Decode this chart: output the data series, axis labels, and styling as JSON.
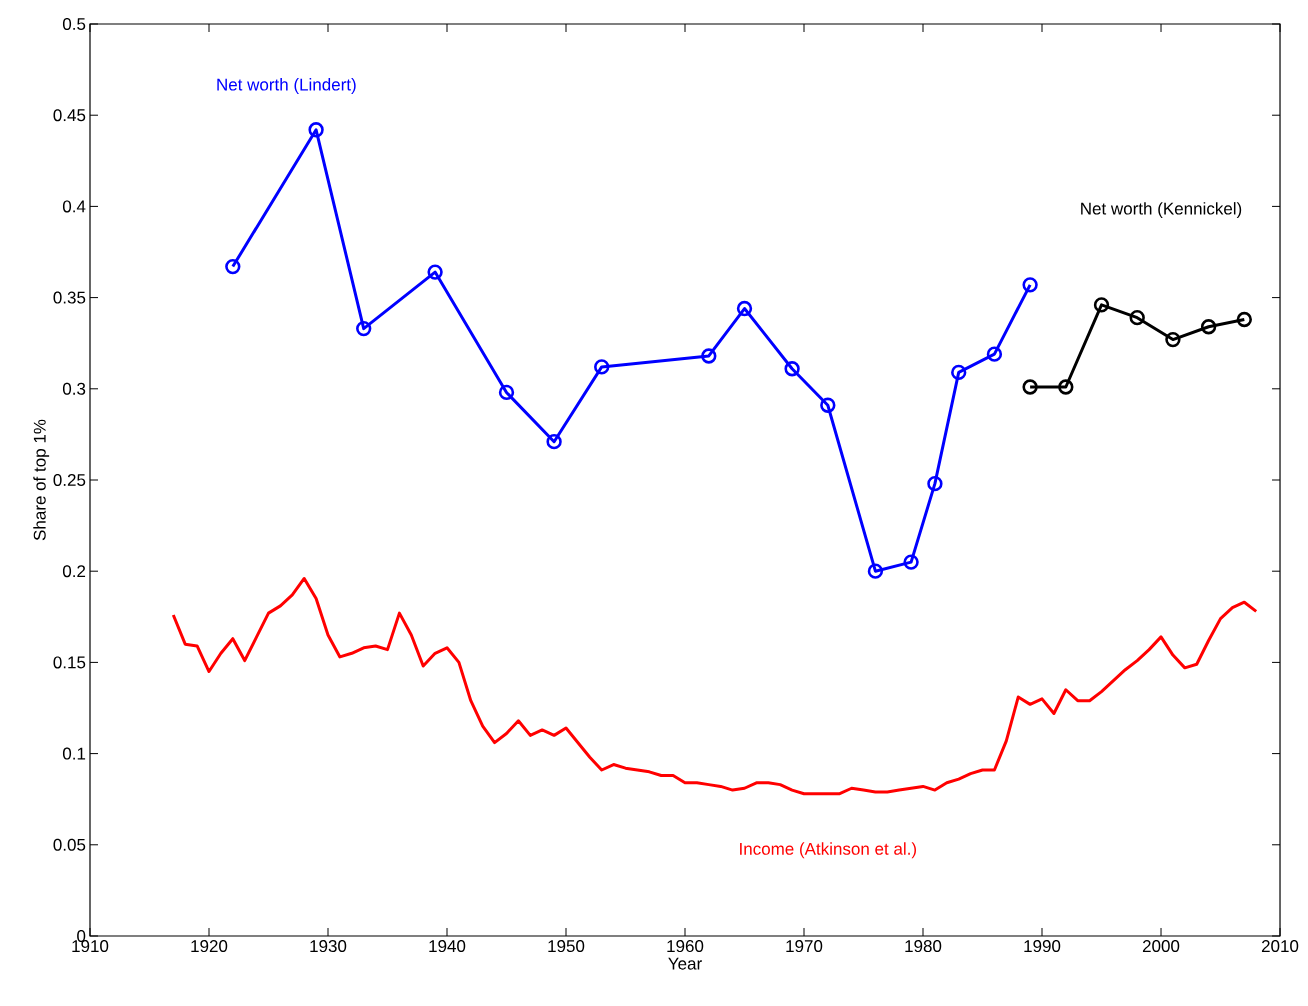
{
  "chart_data": {
    "type": "line",
    "xlabel": "Year",
    "ylabel": "Share of top 1%",
    "xlim": [
      1910,
      2010
    ],
    "xticks": [
      1910,
      1920,
      1930,
      1940,
      1950,
      1960,
      1970,
      1980,
      1990,
      2000,
      2010
    ],
    "ylim": [
      0,
      0.5
    ],
    "yticks": [
      0,
      0.05,
      0.1,
      0.15,
      0.2,
      0.25,
      0.3,
      0.35,
      0.4,
      0.45,
      0.5
    ],
    "grid": false,
    "line_style": "solid",
    "series": [
      {
        "name": "Net worth (Lindert)",
        "color": "#0000ff",
        "marker": "circle",
        "x": [
          1922,
          1929,
          1933,
          1939,
          1945,
          1949,
          1953,
          1962,
          1965,
          1969,
          1972,
          1976,
          1979,
          1981,
          1983,
          1986,
          1989
        ],
        "values": [
          0.367,
          0.442,
          0.333,
          0.364,
          0.298,
          0.271,
          0.312,
          0.318,
          0.344,
          0.311,
          0.291,
          0.2,
          0.205,
          0.248,
          0.309,
          0.319,
          0.357
        ]
      },
      {
        "name": "Net worth (Kennickel)",
        "color": "#000000",
        "marker": "circle",
        "x": [
          1989,
          1992,
          1995,
          1998,
          2001,
          2004,
          2007
        ],
        "values": [
          0.301,
          0.301,
          0.346,
          0.339,
          0.327,
          0.334,
          0.338
        ]
      },
      {
        "name": "Income (Atkinson et al.)",
        "color": "#ff0000",
        "marker": "none",
        "x": [
          1917,
          1918,
          1919,
          1920,
          1921,
          1922,
          1923,
          1924,
          1925,
          1926,
          1927,
          1928,
          1929,
          1930,
          1931,
          1932,
          1933,
          1934,
          1935,
          1936,
          1937,
          1938,
          1939,
          1940,
          1941,
          1942,
          1943,
          1944,
          1945,
          1946,
          1947,
          1948,
          1949,
          1950,
          1951,
          1952,
          1953,
          1954,
          1955,
          1956,
          1957,
          1958,
          1959,
          1960,
          1961,
          1962,
          1963,
          1964,
          1965,
          1966,
          1967,
          1968,
          1969,
          1970,
          1971,
          1972,
          1973,
          1974,
          1975,
          1976,
          1977,
          1978,
          1979,
          1980,
          1981,
          1982,
          1983,
          1984,
          1985,
          1986,
          1987,
          1988,
          1989,
          1990,
          1991,
          1992,
          1993,
          1994,
          1995,
          1996,
          1997,
          1998,
          1999,
          2000,
          2001,
          2002,
          2003,
          2004,
          2005,
          2006,
          2007,
          2008
        ],
        "values": [
          0.176,
          0.16,
          0.159,
          0.145,
          0.155,
          0.163,
          0.151,
          0.164,
          0.177,
          0.181,
          0.187,
          0.196,
          0.185,
          0.165,
          0.153,
          0.155,
          0.158,
          0.159,
          0.157,
          0.177,
          0.165,
          0.148,
          0.155,
          0.158,
          0.15,
          0.129,
          0.115,
          0.106,
          0.111,
          0.118,
          0.11,
          0.113,
          0.11,
          0.114,
          0.106,
          0.098,
          0.091,
          0.094,
          0.092,
          0.091,
          0.09,
          0.088,
          0.088,
          0.084,
          0.084,
          0.083,
          0.082,
          0.08,
          0.081,
          0.084,
          0.084,
          0.083,
          0.08,
          0.078,
          0.078,
          0.078,
          0.078,
          0.081,
          0.08,
          0.079,
          0.079,
          0.08,
          0.081,
          0.082,
          0.08,
          0.084,
          0.086,
          0.089,
          0.091,
          0.091,
          0.107,
          0.131,
          0.127,
          0.13,
          0.122,
          0.135,
          0.129,
          0.129,
          0.134,
          0.14,
          0.146,
          0.151,
          0.157,
          0.164,
          0.154,
          0.147,
          0.149,
          0.162,
          0.174,
          0.18,
          0.183,
          0.178
        ]
      }
    ]
  }
}
